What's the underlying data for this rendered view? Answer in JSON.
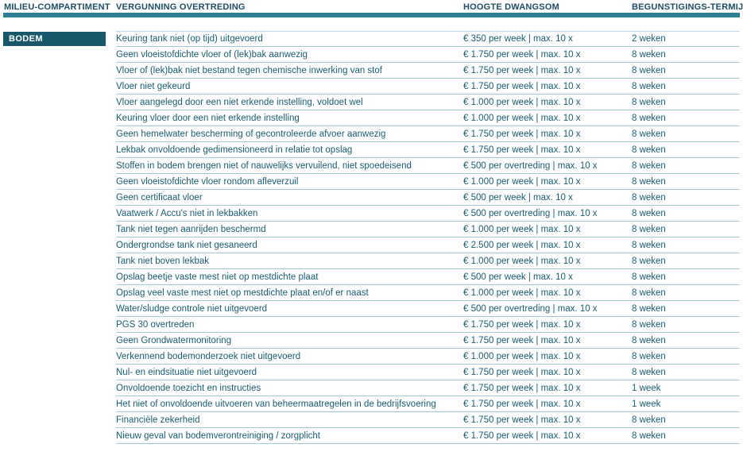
{
  "table": {
    "columns": [
      "MILIEU-COMPARTIMENT",
      "VERGUNNING OVERTREDING",
      "HOOGTE DWANGSOM",
      "BEGUNSTIGINGS-TERMIJN"
    ],
    "compartment": "BODEM"
  },
  "rows": [
    {
      "compartment": "BODEM",
      "violation": "Keuring tank niet (op tijd) uitgevoerd",
      "penalty": "€ 350 per week | max. 10 x",
      "term": "2 weken"
    },
    {
      "violation": "Geen vloeistofdichte vloer of (lek)bak aanwezig",
      "penalty": "€ 1.750 per week | max. 10 x",
      "term": "8 weken"
    },
    {
      "violation": "Vloer of (lek)bak niet bestand tegen chemische inwerking van stof",
      "penalty": "€ 1.750 per week | max. 10 x",
      "term": "8 weken"
    },
    {
      "violation": "Vloer niet gekeurd",
      "penalty": "€ 1.750 per week | max. 10 x",
      "term": "8 weken"
    },
    {
      "violation": "Vloer aangelegd door een niet erkende instelling, voldoet wel",
      "penalty": "€ 1.000 per week | max. 10 x",
      "term": "8 weken"
    },
    {
      "violation": "Keuring vloer door een niet erkende instelling",
      "penalty": "€ 1.000 per week | max. 10 x",
      "term": "8 weken"
    },
    {
      "violation": "Geen hemelwater bescherming of gecontroleerde afvoer aanwezig",
      "penalty": "€ 1.750 per week | max. 10 x",
      "term": "8 weken"
    },
    {
      "violation": "Lekbak onvoldoende gedimensioneerd in relatie tot opslag",
      "penalty": "€ 1.750 per week | max. 10 x",
      "term": "8 weken"
    },
    {
      "violation": "Stoffen in bodem brengen niet of nauwelijks vervuilend, niet spoedeisend",
      "penalty": "€ 500 per overtreding | max. 10 x",
      "term": "8 weken"
    },
    {
      "violation": "Geen vloeistofdichte vloer rondom afleverzuil",
      "penalty": "€ 1.000 per week | max. 10 x",
      "term": "8 weken"
    },
    {
      "violation": "Geen certificaat vloer",
      "penalty": "€ 500 per week | max. 10 x",
      "term": "8 weken"
    },
    {
      "violation": "Vaatwerk / Accu's niet in lekbakken",
      "penalty": "€ 500 per overtreding | max. 10 x",
      "term": "8 weken"
    },
    {
      "violation": "Tank niet tegen aanrijden beschermd",
      "penalty": "€ 1.000 per week | max. 10 x",
      "term": "8 weken"
    },
    {
      "violation": "Ondergrondse tank niet gesaneerd",
      "penalty": "€ 2.500 per week | max. 10 x",
      "term": "8 weken"
    },
    {
      "violation": "Tank niet boven lekbak",
      "penalty": "€ 1.000 per week | max. 10 x",
      "term": "8 weken"
    },
    {
      "violation": "Opslag beetje vaste mest niet op mestdichte plaat",
      "penalty": "€ 500 per week | max. 10 x",
      "term": "8 weken"
    },
    {
      "violation": "Opslag veel vaste mest niet op mestdichte plaat en/of er naast",
      "penalty": "€ 1.000 per week | max. 10 x",
      "term": "8 weken"
    },
    {
      "violation": "Water/sludge controle niet uitgevoerd",
      "penalty": "€ 500 per overtreding | max. 10 x",
      "term": "8 weken"
    },
    {
      "violation": "PGS 30 overtreden",
      "penalty": "€ 1.750 per week | max. 10 x",
      "term": "8 weken"
    },
    {
      "violation": "Geen Grondwatermonitoring",
      "penalty": "€ 1.750 per week | max. 10 x",
      "term": "8 weken"
    },
    {
      "violation": "Verkennend bodemonderzoek niet uitgevoerd",
      "penalty": "€ 1.000 per week | max. 10 x",
      "term": "8 weken"
    },
    {
      "violation": "Nul- en eindsituatie niet uitgevoerd",
      "penalty": "€ 1.750 per week | max. 10 x",
      "term": "8 weken"
    },
    {
      "violation": "Onvoldoende toezicht en instructies",
      "penalty": "€ 1.750 per week | max. 10 x",
      "term": "1 week"
    },
    {
      "violation": "Het niet of onvoldoende uitvoeren van beheermaatregelen in de bedrijfsvoering",
      "penalty": "€ 1.750 per week | max. 10 x",
      "term": "1 week"
    },
    {
      "violation": "Financiële zekerheid",
      "penalty": "€ 1.750 per week | max. 10 x",
      "term": "8 weken"
    },
    {
      "violation": "Nieuw geval van bodemverontreiniging / zorgplicht",
      "penalty": "€ 1.750 per week | max. 10 x",
      "term": "8 weken"
    }
  ],
  "colors": {
    "header_text": "#1C4F63",
    "accent_rule": "#2E7E95",
    "compartment_bg": "#19586C",
    "row_text": "#1A5E74",
    "divider": "#A7C9DC"
  }
}
